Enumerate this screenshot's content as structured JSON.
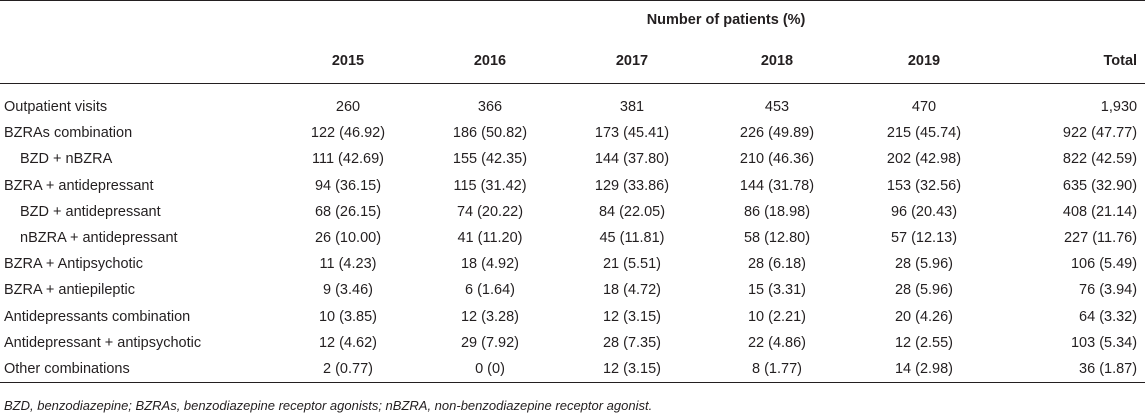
{
  "table": {
    "super_header": "Number of patients (%)",
    "columns": [
      "2015",
      "2016",
      "2017",
      "2018",
      "2019",
      "Total"
    ],
    "rows": [
      {
        "label": "Outpatient visits",
        "indent": false,
        "values": [
          "260",
          "366",
          "381",
          "453",
          "470",
          "1,930"
        ]
      },
      {
        "label": "BZRAs combination",
        "indent": false,
        "values": [
          "122 (46.92)",
          "186 (50.82)",
          "173 (45.41)",
          "226 (49.89)",
          "215 (45.74)",
          "922 (47.77)"
        ]
      },
      {
        "label": "BZD + nBZRA",
        "indent": true,
        "values": [
          "111 (42.69)",
          "155 (42.35)",
          "144 (37.80)",
          "210 (46.36)",
          "202 (42.98)",
          "822 (42.59)"
        ]
      },
      {
        "label": "BZRA + antidepressant",
        "indent": false,
        "values": [
          "94 (36.15)",
          "115 (31.42)",
          "129 (33.86)",
          "144 (31.78)",
          "153 (32.56)",
          "635 (32.90)"
        ]
      },
      {
        "label": "BZD + antidepressant",
        "indent": true,
        "values": [
          "68 (26.15)",
          "74 (20.22)",
          "84 (22.05)",
          "86 (18.98)",
          "96 (20.43)",
          "408 (21.14)"
        ]
      },
      {
        "label": "nBZRA + antidepressant",
        "indent": true,
        "values": [
          "26 (10.00)",
          "41 (11.20)",
          "45 (11.81)",
          "58 (12.80)",
          "57 (12.13)",
          "227 (11.76)"
        ]
      },
      {
        "label": "BZRA + Antipsychotic",
        "indent": false,
        "values": [
          "11 (4.23)",
          "18 (4.92)",
          "21 (5.51)",
          "28 (6.18)",
          "28 (5.96)",
          "106 (5.49)"
        ]
      },
      {
        "label": "BZRA + antiepileptic",
        "indent": false,
        "values": [
          "9 (3.46)",
          "6 (1.64)",
          "18 (4.72)",
          "15 (3.31)",
          "28 (5.96)",
          "76 (3.94)"
        ]
      },
      {
        "label": "Antidepressants combination",
        "indent": false,
        "values": [
          "10 (3.85)",
          "12 (3.28)",
          "12 (3.15)",
          "10 (2.21)",
          "20 (4.26)",
          "64 (3.32)"
        ]
      },
      {
        "label": "Antidepressant + antipsychotic",
        "indent": false,
        "values": [
          "12 (4.62)",
          "29 (7.92)",
          "28 (7.35)",
          "22 (4.86)",
          "12 (2.55)",
          "103 (5.34)"
        ]
      },
      {
        "label": "Other combinations",
        "indent": false,
        "values": [
          "2 (0.77)",
          "0 (0)",
          "12 (3.15)",
          "8 (1.77)",
          "14 (2.98)",
          "36 (1.87)"
        ]
      }
    ]
  },
  "footnote": "BZD, benzodiazepine; BZRAs, benzodiazepine receptor agonists; nBZRA, non-benzodiazepine receptor agonist."
}
